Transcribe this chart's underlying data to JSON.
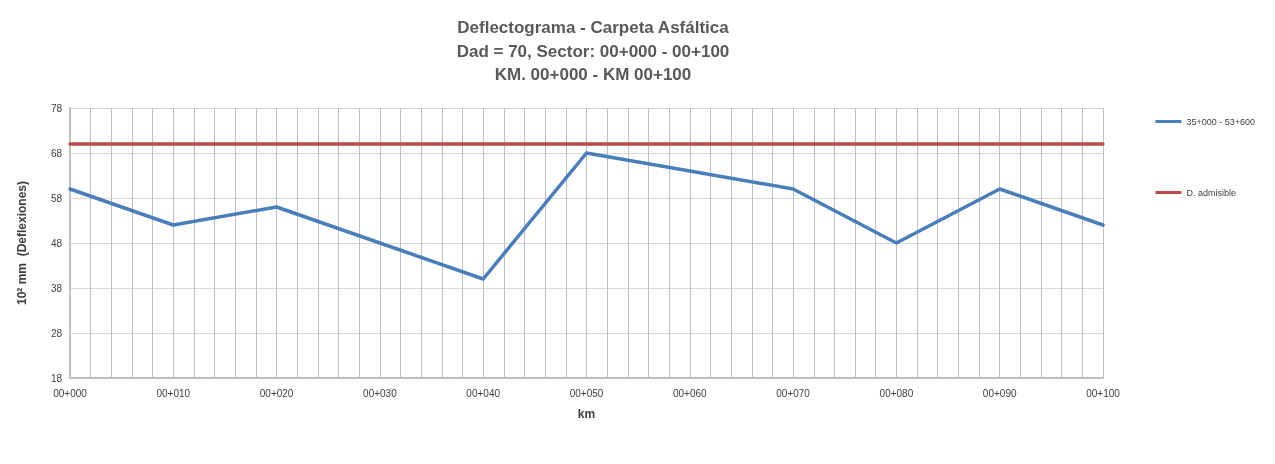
{
  "chart_data": {
    "type": "line",
    "title": "Deflectograma - Carpeta Asfáltica",
    "subtitle": "Dad = 70, Sector: 00+000 - 00+100\nKM. 00+000 - KM 00+100",
    "xlabel": "km",
    "ylabel": "10² mm  (Deflexiones)",
    "categories": [
      "00+000",
      "00+010",
      "00+020",
      "00+030",
      "00+040",
      "00+050",
      "00+060",
      "00+070",
      "00+080",
      "00+090",
      "00+100"
    ],
    "series": [
      {
        "name": "35+000 - 53+600",
        "color": "#4a7ebb",
        "values": [
          60,
          52,
          56,
          48,
          40,
          68,
          64,
          60,
          48,
          60,
          52
        ]
      },
      {
        "name": "D. admisible",
        "color": "#be4b48",
        "values": [
          70,
          70,
          70,
          70,
          70,
          70,
          70,
          70,
          70,
          70,
          70
        ]
      }
    ],
    "ylim": [
      18,
      78
    ],
    "yticks": [
      18,
      28,
      38,
      48,
      58,
      68,
      78
    ],
    "grid": true,
    "legend": "right",
    "marker": "none",
    "line_style": "solid"
  }
}
